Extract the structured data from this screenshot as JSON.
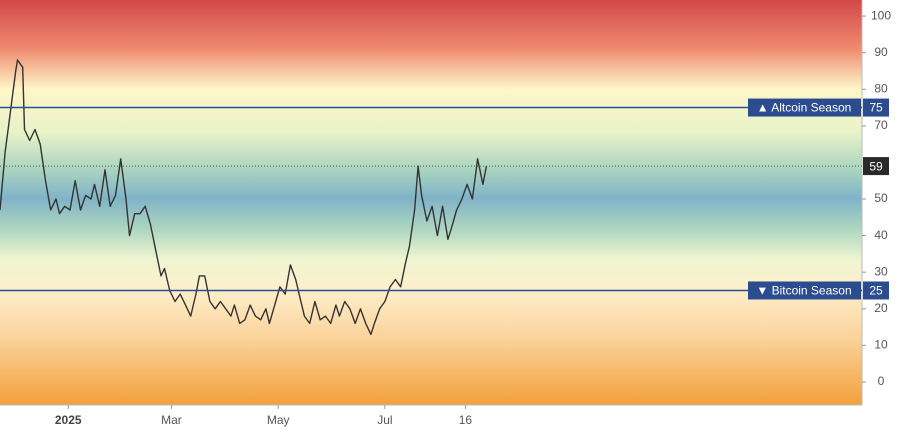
{
  "chart_data": {
    "type": "line",
    "x": [
      -39,
      -36,
      -33,
      -30,
      -29,
      -26,
      -25,
      -22,
      -19,
      -16,
      -13,
      -10,
      -7,
      -5,
      -2,
      1,
      4,
      7,
      10,
      13,
      15,
      18,
      21,
      24,
      27,
      30,
      33,
      35,
      38,
      41,
      44,
      47,
      50,
      53,
      55,
      58,
      61,
      64,
      67,
      70,
      73,
      75,
      78,
      81,
      84,
      87,
      90,
      93,
      95,
      98,
      101,
      104,
      107,
      110,
      113,
      115,
      118,
      121,
      124,
      127,
      130,
      133,
      135,
      138,
      141,
      144,
      147,
      150,
      153,
      155,
      158,
      161,
      164,
      167,
      170,
      173,
      175,
      178,
      181,
      184,
      187,
      190,
      193,
      195,
      198,
      200,
      202,
      205,
      208,
      211,
      214,
      217,
      219,
      222,
      225,
      228,
      231,
      234,
      237,
      239
    ],
    "series": [
      {
        "color": "#333333",
        "values": [
          47,
          63,
          74,
          85,
          88,
          86,
          69,
          66,
          69,
          65,
          55,
          47,
          50,
          46,
          48,
          47,
          55,
          47,
          51,
          50,
          54,
          48,
          58,
          48,
          51,
          61,
          50,
          40,
          46,
          46,
          48,
          43,
          36,
          29,
          31,
          25,
          22,
          24,
          21,
          18,
          24,
          29,
          29,
          22,
          20,
          22,
          20,
          18,
          21,
          16,
          17,
          21,
          18,
          17,
          20,
          16,
          21,
          26,
          24,
          32,
          28,
          22,
          18,
          16,
          22,
          17,
          18,
          16,
          21,
          18,
          22,
          20,
          16,
          20,
          16,
          13,
          16,
          20,
          22,
          26,
          28,
          26,
          33,
          37,
          47,
          59,
          51,
          44,
          48,
          40,
          48,
          39,
          42,
          47,
          50,
          54,
          50,
          61,
          54,
          59
        ]
      }
    ],
    "xlim": [
      -39,
      453.7
    ],
    "xticks": [
      {
        "value": 0,
        "label": "2025"
      },
      {
        "value": 59,
        "label": "Mar"
      },
      {
        "value": 120,
        "label": "May"
      },
      {
        "value": 181,
        "label": "Jul"
      },
      {
        "value": 227,
        "label": "16"
      }
    ],
    "ylim": [
      -6.3,
      104.4
    ],
    "yticks": [
      0,
      10,
      20,
      30,
      40,
      50,
      70,
      80,
      90,
      100
    ],
    "levels": [
      {
        "label": "▲ Altcoin Season",
        "value": 75,
        "color": "#2b4d8f"
      },
      {
        "label": "▼ Bitcoin Season",
        "value": 25,
        "color": "#2b4d8f"
      }
    ],
    "current": 59
  }
}
